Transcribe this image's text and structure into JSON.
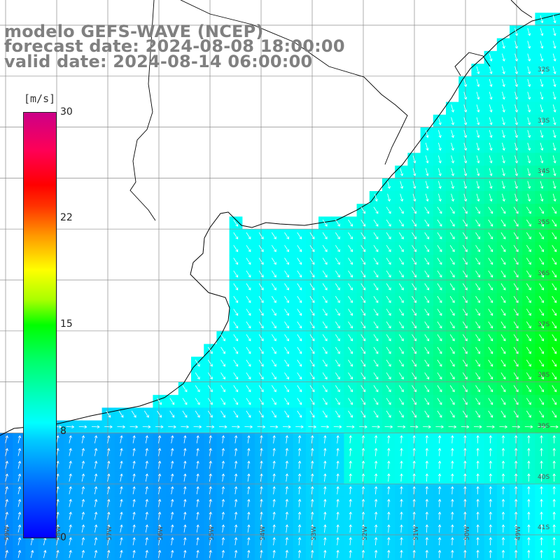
{
  "title": {
    "line1": "modelo GEFS-WAVE (NCEP)",
    "line2": "forecast date: 2024-08-08 18:00:00",
    "line3": "    valid date: 2024-08-14 06:00:00"
  },
  "colorbar": {
    "unit": "[m/s]",
    "ticks": [
      "30",
      "22",
      "15",
      "8",
      "0"
    ],
    "tick_values": [
      30,
      22,
      15,
      8,
      0
    ],
    "min": 0,
    "max": 30
  },
  "lat_labels": [
    "32S",
    "33S",
    "34S",
    "35S",
    "36S",
    "37S",
    "38S",
    "39S",
    "40S",
    "41S"
  ],
  "lon_labels": [
    "59W",
    "58W",
    "57W",
    "56W",
    "55W",
    "54W",
    "53W",
    "52W",
    "51W",
    "50W",
    "49W"
  ],
  "colors": {
    "land": "#ffffff",
    "grid": "#8c8c8c",
    "coast": "#000000",
    "arrows": "#ffffff",
    "title": "#808080"
  }
}
